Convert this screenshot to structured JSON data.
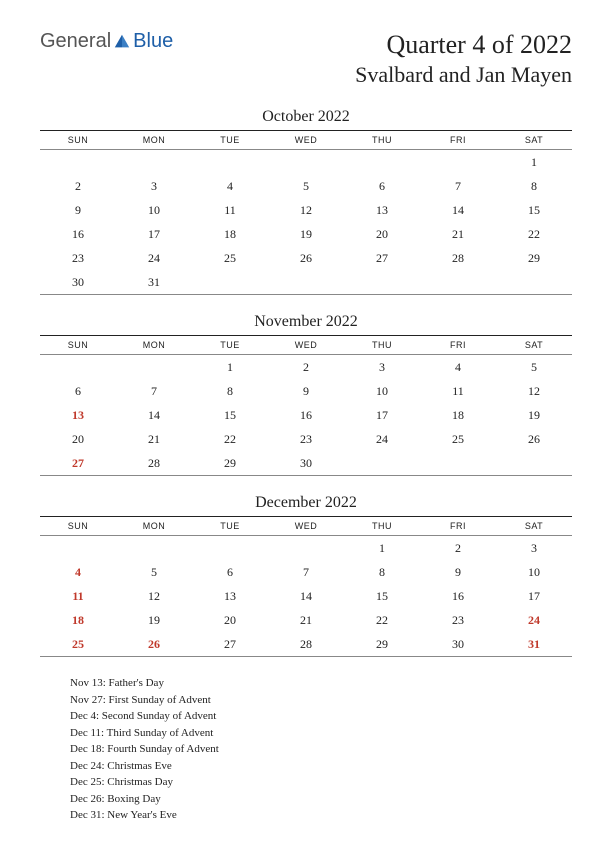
{
  "logo": {
    "part1": "General",
    "part2": "Blue"
  },
  "titles": {
    "main": "Quarter 4 of 2022",
    "sub": "Svalbard and Jan Mayen"
  },
  "day_headers": [
    "SUN",
    "MON",
    "TUE",
    "WED",
    "THU",
    "FRI",
    "SAT"
  ],
  "colors": {
    "holiday": "#c0392b",
    "text": "#222222",
    "logo_gray": "#555555",
    "logo_blue": "#1e5fa8",
    "rule_dark": "#222222",
    "rule_light": "#888888",
    "background": "#ffffff"
  },
  "months": [
    {
      "title": "October 2022",
      "weeks": [
        [
          {
            "d": ""
          },
          {
            "d": ""
          },
          {
            "d": ""
          },
          {
            "d": ""
          },
          {
            "d": ""
          },
          {
            "d": ""
          },
          {
            "d": "1"
          }
        ],
        [
          {
            "d": "2"
          },
          {
            "d": "3"
          },
          {
            "d": "4"
          },
          {
            "d": "5"
          },
          {
            "d": "6"
          },
          {
            "d": "7"
          },
          {
            "d": "8"
          }
        ],
        [
          {
            "d": "9"
          },
          {
            "d": "10"
          },
          {
            "d": "11"
          },
          {
            "d": "12"
          },
          {
            "d": "13"
          },
          {
            "d": "14"
          },
          {
            "d": "15"
          }
        ],
        [
          {
            "d": "16"
          },
          {
            "d": "17"
          },
          {
            "d": "18"
          },
          {
            "d": "19"
          },
          {
            "d": "20"
          },
          {
            "d": "21"
          },
          {
            "d": "22"
          }
        ],
        [
          {
            "d": "23"
          },
          {
            "d": "24"
          },
          {
            "d": "25"
          },
          {
            "d": "26"
          },
          {
            "d": "27"
          },
          {
            "d": "28"
          },
          {
            "d": "29"
          }
        ],
        [
          {
            "d": "30"
          },
          {
            "d": "31"
          },
          {
            "d": ""
          },
          {
            "d": ""
          },
          {
            "d": ""
          },
          {
            "d": ""
          },
          {
            "d": ""
          }
        ]
      ]
    },
    {
      "title": "November 2022",
      "weeks": [
        [
          {
            "d": ""
          },
          {
            "d": ""
          },
          {
            "d": "1"
          },
          {
            "d": "2"
          },
          {
            "d": "3"
          },
          {
            "d": "4"
          },
          {
            "d": "5"
          }
        ],
        [
          {
            "d": "6"
          },
          {
            "d": "7"
          },
          {
            "d": "8"
          },
          {
            "d": "9"
          },
          {
            "d": "10"
          },
          {
            "d": "11"
          },
          {
            "d": "12"
          }
        ],
        [
          {
            "d": "13",
            "h": true
          },
          {
            "d": "14"
          },
          {
            "d": "15"
          },
          {
            "d": "16"
          },
          {
            "d": "17"
          },
          {
            "d": "18"
          },
          {
            "d": "19"
          }
        ],
        [
          {
            "d": "20"
          },
          {
            "d": "21"
          },
          {
            "d": "22"
          },
          {
            "d": "23"
          },
          {
            "d": "24"
          },
          {
            "d": "25"
          },
          {
            "d": "26"
          }
        ],
        [
          {
            "d": "27",
            "h": true
          },
          {
            "d": "28"
          },
          {
            "d": "29"
          },
          {
            "d": "30"
          },
          {
            "d": ""
          },
          {
            "d": ""
          },
          {
            "d": ""
          }
        ]
      ]
    },
    {
      "title": "December 2022",
      "weeks": [
        [
          {
            "d": ""
          },
          {
            "d": ""
          },
          {
            "d": ""
          },
          {
            "d": ""
          },
          {
            "d": "1"
          },
          {
            "d": "2"
          },
          {
            "d": "3"
          }
        ],
        [
          {
            "d": "4",
            "h": true
          },
          {
            "d": "5"
          },
          {
            "d": "6"
          },
          {
            "d": "7"
          },
          {
            "d": "8"
          },
          {
            "d": "9"
          },
          {
            "d": "10"
          }
        ],
        [
          {
            "d": "11",
            "h": true
          },
          {
            "d": "12"
          },
          {
            "d": "13"
          },
          {
            "d": "14"
          },
          {
            "d": "15"
          },
          {
            "d": "16"
          },
          {
            "d": "17"
          }
        ],
        [
          {
            "d": "18",
            "h": true
          },
          {
            "d": "19"
          },
          {
            "d": "20"
          },
          {
            "d": "21"
          },
          {
            "d": "22"
          },
          {
            "d": "23"
          },
          {
            "d": "24",
            "h": true
          }
        ],
        [
          {
            "d": "25",
            "h": true
          },
          {
            "d": "26",
            "h": true
          },
          {
            "d": "27"
          },
          {
            "d": "28"
          },
          {
            "d": "29"
          },
          {
            "d": "30"
          },
          {
            "d": "31",
            "h": true
          }
        ]
      ]
    }
  ],
  "holidays": [
    "Nov 13: Father's Day",
    "Nov 27: First Sunday of Advent",
    "Dec 4: Second Sunday of Advent",
    "Dec 11: Third Sunday of Advent",
    "Dec 18: Fourth Sunday of Advent",
    "Dec 24: Christmas Eve",
    "Dec 25: Christmas Day",
    "Dec 26: Boxing Day",
    "Dec 31: New Year's Eve"
  ]
}
